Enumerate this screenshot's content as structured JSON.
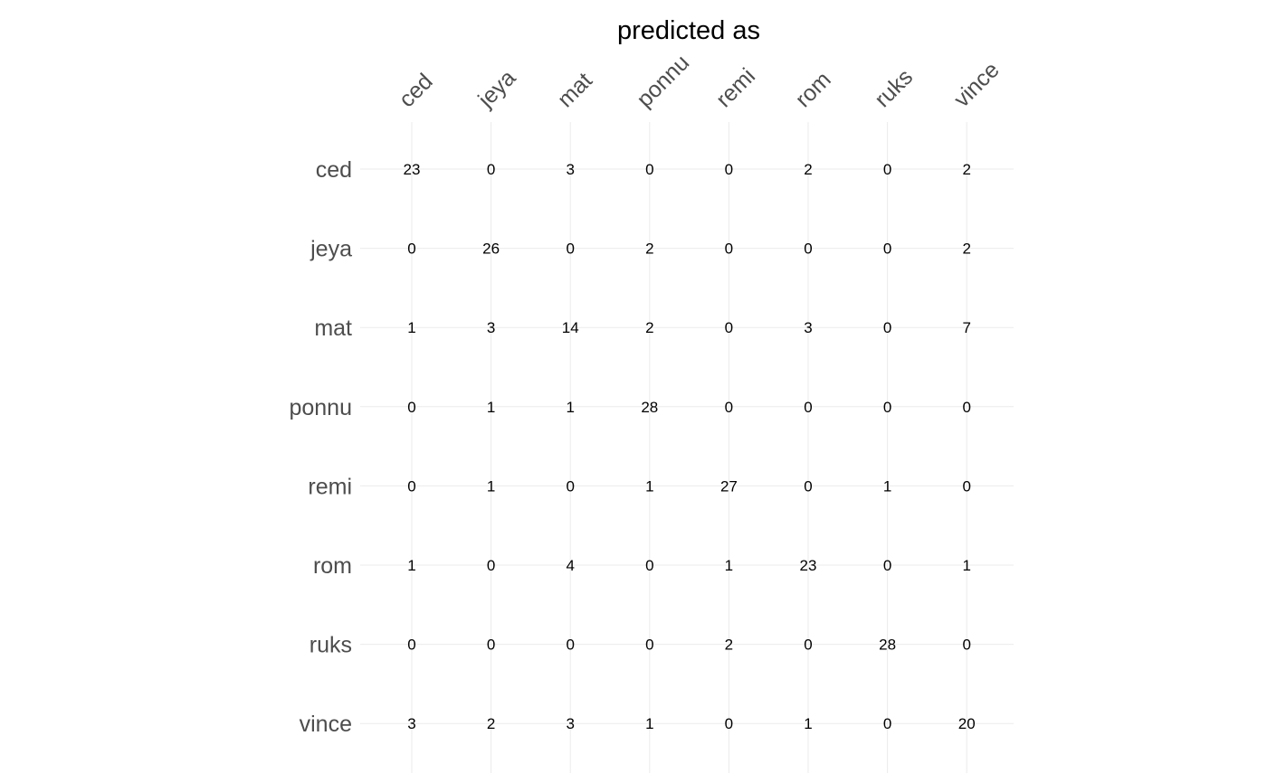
{
  "chart_data": {
    "type": "table",
    "title": "predicted as",
    "columns": [
      "ced",
      "jeya",
      "mat",
      "ponnu",
      "remi",
      "rom",
      "ruks",
      "vince"
    ],
    "rows": [
      "ced",
      "jeya",
      "mat",
      "ponnu",
      "remi",
      "rom",
      "ruks",
      "vince"
    ],
    "values": [
      [
        23,
        0,
        3,
        0,
        0,
        2,
        0,
        2
      ],
      [
        0,
        26,
        0,
        2,
        0,
        0,
        0,
        2
      ],
      [
        1,
        3,
        14,
        2,
        0,
        3,
        0,
        7
      ],
      [
        0,
        1,
        1,
        28,
        0,
        0,
        0,
        0
      ],
      [
        0,
        1,
        0,
        1,
        27,
        0,
        1,
        0
      ],
      [
        1,
        0,
        4,
        0,
        1,
        23,
        0,
        1
      ],
      [
        0,
        0,
        0,
        0,
        2,
        0,
        28,
        0
      ],
      [
        3,
        2,
        3,
        1,
        0,
        1,
        0,
        20
      ]
    ],
    "grid": true,
    "legend": "none"
  }
}
